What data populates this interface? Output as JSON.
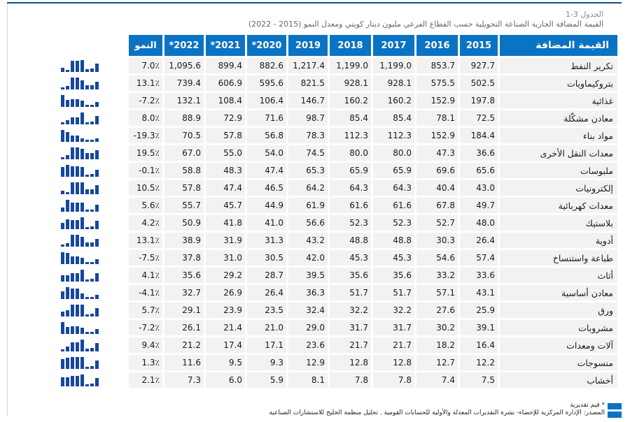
{
  "caption": {
    "label": "الجدول 3-1",
    "title": "القيمة المضافة الجارية الصناعة التحويلية حسب القطاع الفرعي مليون دينار كويتي ومعدل النمو (2015 - 2022)"
  },
  "headers": {
    "name": "القيمة المضافة",
    "years": [
      "2015",
      "2016",
      "2017",
      "2018",
      "2019",
      "*2020",
      "*2021",
      "*2022"
    ],
    "growth": "النمو"
  },
  "rows": [
    {
      "name": "تكرير النفط",
      "v": [
        "927.7",
        "853.7",
        "1,199.0",
        "1,199.0",
        "1,217.4",
        "882.6",
        "899.4",
        "1,095.6"
      ],
      "growth": "7.0٪",
      "spark": [
        927.7,
        853.7,
        1199.0,
        1199.0,
        1217.4,
        882.6,
        899.4,
        1095.6
      ]
    },
    {
      "name": "بتروكيماويات",
      "v": [
        "502.5",
        "575.5",
        "928.1",
        "928.1",
        "821.5",
        "595.6",
        "606.9",
        "739.4"
      ],
      "growth": "13.1٪",
      "spark": [
        502.5,
        575.5,
        928.1,
        928.1,
        821.5,
        595.6,
        606.9,
        739.4
      ]
    },
    {
      "name": "غذائية",
      "v": [
        "197.8",
        "152.9",
        "160.2",
        "160.2",
        "146.7",
        "106.4",
        "108.4",
        "132.1"
      ],
      "growth": "-7.2٪",
      "spark": [
        197.8,
        152.9,
        160.2,
        160.2,
        146.7,
        106.4,
        108.4,
        132.1
      ]
    },
    {
      "name": "معادن مشكّلة",
      "v": [
        "72.5",
        "78.1",
        "85.4",
        "85.4",
        "98.7",
        "71.6",
        "72.9",
        "88.9"
      ],
      "growth": "8.0٪",
      "spark": [
        72.5,
        78.1,
        85.4,
        85.4,
        98.7,
        71.6,
        72.9,
        88.9
      ]
    },
    {
      "name": "مواد بناء",
      "v": [
        "184.4",
        "152.9",
        "112.3",
        "112.3",
        "78.3",
        "56.8",
        "57.8",
        "70.5"
      ],
      "growth": "-19.3٪",
      "spark": [
        184.4,
        152.9,
        112.3,
        112.3,
        78.3,
        56.8,
        57.8,
        70.5
      ]
    },
    {
      "name": "معدات النقل الأخرى",
      "v": [
        "36.6",
        "47.3",
        "80.0",
        "80.0",
        "74.5",
        "54.0",
        "55.0",
        "67.0"
      ],
      "growth": "19.5٪",
      "spark": [
        36.6,
        47.3,
        80.0,
        80.0,
        74.5,
        54.0,
        55.0,
        67.0
      ]
    },
    {
      "name": "ملبوسات",
      "v": [
        "65.6",
        "69.6",
        "65.9",
        "65.9",
        "65.3",
        "47.4",
        "48.3",
        "58.8"
      ],
      "growth": "-0.1٪",
      "spark": [
        65.6,
        69.6,
        65.9,
        65.9,
        65.3,
        47.4,
        48.3,
        58.8
      ]
    },
    {
      "name": "إلكترونيات",
      "v": [
        "43.0",
        "40.4",
        "64.3",
        "64.3",
        "64.2",
        "46.5",
        "47.4",
        "57.8"
      ],
      "growth": "10.5٪",
      "spark": [
        43.0,
        40.4,
        64.3,
        64.3,
        64.2,
        46.5,
        47.4,
        57.8
      ]
    },
    {
      "name": "معدات كهربائية",
      "v": [
        "49.7",
        "67.8",
        "61.6",
        "61.6",
        "61.9",
        "44.9",
        "45.7",
        "55.7"
      ],
      "growth": "5.6٪",
      "spark": [
        49.7,
        67.8,
        61.6,
        61.6,
        61.9,
        44.9,
        45.7,
        55.7
      ]
    },
    {
      "name": "بلاستيك",
      "v": [
        "48.0",
        "52.7",
        "52.3",
        "52.3",
        "56.6",
        "41.0",
        "41.8",
        "50.9"
      ],
      "growth": "4.2٪",
      "spark": [
        48.0,
        52.7,
        52.3,
        52.3,
        56.6,
        41.0,
        41.8,
        50.9
      ]
    },
    {
      "name": "أدوية",
      "v": [
        "26.4",
        "30.3",
        "48.8",
        "48.8",
        "43.2",
        "31.3",
        "31.9",
        "38.9"
      ],
      "growth": "13.1٪",
      "spark": [
        26.4,
        30.3,
        48.8,
        48.8,
        43.2,
        31.3,
        31.9,
        38.9
      ]
    },
    {
      "name": "طباعة واستنساخ",
      "v": [
        "57.4",
        "54.6",
        "45.3",
        "45.3",
        "42.0",
        "30.5",
        "31.0",
        "37.8"
      ],
      "growth": "-7.5٪",
      "spark": [
        57.4,
        54.6,
        45.3,
        45.3,
        42.0,
        30.5,
        31.0,
        37.8
      ]
    },
    {
      "name": "أثاث",
      "v": [
        "33.6",
        "33.2",
        "35.6",
        "35.6",
        "39.5",
        "28.7",
        "29.2",
        "35.6"
      ],
      "growth": "4.1٪",
      "spark": [
        33.6,
        33.2,
        35.6,
        35.6,
        39.5,
        28.7,
        29.2,
        35.6
      ]
    },
    {
      "name": "معادن أساسية",
      "v": [
        "43.1",
        "57.1",
        "51.7",
        "51.7",
        "36.3",
        "26.4",
        "26.9",
        "32.7"
      ],
      "growth": "-4.1٪",
      "spark": [
        43.1,
        57.1,
        51.7,
        51.7,
        36.3,
        26.4,
        26.9,
        32.7
      ]
    },
    {
      "name": "ورق",
      "v": [
        "25.9",
        "27.6",
        "32.2",
        "32.2",
        "32.4",
        "23.5",
        "23.9",
        "29.1"
      ],
      "growth": "5.7٪",
      "spark": [
        25.9,
        27.6,
        32.2,
        32.2,
        32.4,
        23.5,
        23.9,
        29.1
      ]
    },
    {
      "name": "مشروبات",
      "v": [
        "39.1",
        "30.2",
        "31.7",
        "31.7",
        "29.0",
        "21.0",
        "21.4",
        "26.1"
      ],
      "growth": "-7.2٪",
      "spark": [
        39.1,
        30.2,
        31.7,
        31.7,
        29.0,
        21.0,
        21.4,
        26.1
      ]
    },
    {
      "name": "آلات ومعدات",
      "v": [
        "16.4",
        "18.2",
        "21.7",
        "21.7",
        "23.6",
        "17.1",
        "17.4",
        "21.2"
      ],
      "growth": "9.4٪",
      "spark": [
        16.4,
        18.2,
        21.7,
        21.7,
        23.6,
        17.1,
        17.4,
        21.2
      ]
    },
    {
      "name": "منسوجات",
      "v": [
        "12.2",
        "12.7",
        "12.8",
        "12.8",
        "12.9",
        "9.3",
        "9.5",
        "11.6"
      ],
      "growth": "1.3٪",
      "spark": [
        12.2,
        12.7,
        12.8,
        12.8,
        12.9,
        9.3,
        9.5,
        11.6
      ]
    },
    {
      "name": "أخشاب",
      "v": [
        "7.5",
        "7.4",
        "7.8",
        "7.8",
        "8.1",
        "5.9",
        "6.0",
        "7.3"
      ],
      "growth": "2.1٪",
      "spark": [
        7.5,
        7.4,
        7.8,
        7.8,
        8.1,
        5.9,
        6.0,
        7.3
      ]
    }
  ],
  "notes": {
    "estimate": "* قيم تقديرية",
    "source": "المصدر: الإدارة المركزية للإحصاء- نشرة التقديرات المعدلة والأولية للحسابات القومية . تحليل منظمة الخليج للاستشارات الصناعية"
  },
  "colors": {
    "header_blue": "#0a73c4",
    "spark_blue": "#17479e",
    "cell_gray": "#f2f2f2"
  }
}
